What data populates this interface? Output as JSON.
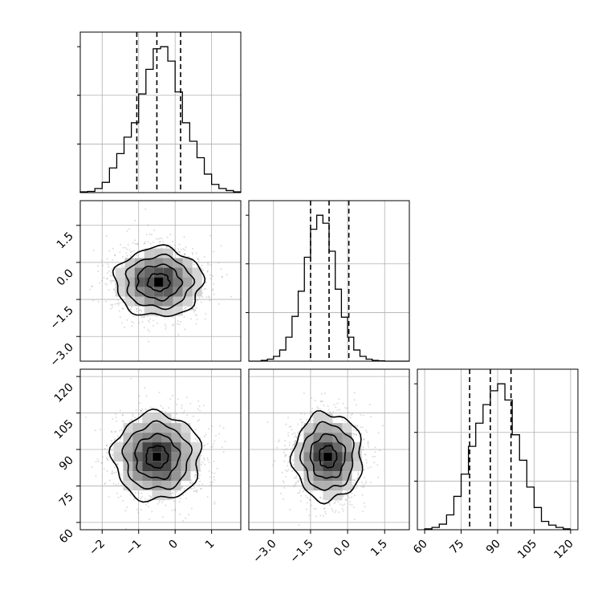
{
  "chart_data": {
    "type": "corner",
    "grid": true,
    "variables": [
      {
        "range": [
          -2.6,
          1.8
        ],
        "ticks": [
          -2,
          -1,
          0,
          1
        ],
        "tick_labels": [
          "−2",
          "−1",
          "0",
          "1"
        ],
        "quantiles": [
          -1.05,
          -0.5,
          0.15
        ],
        "hist_x0": -2.6,
        "hist_step": 0.2,
        "hist_counts": [
          2,
          3,
          10,
          25,
          60,
          95,
          135,
          170,
          240,
          300,
          350,
          355,
          320,
          245,
          170,
          125,
          85,
          45,
          20,
          10,
          5,
          2
        ]
      },
      {
        "range": [
          -4.0,
          2.5
        ],
        "ticks": [
          -3.0,
          -1.5,
          0.0,
          1.5
        ],
        "tick_labels": [
          "−3.0",
          "−1.5",
          "0.0",
          "1.5"
        ],
        "quantiles": [
          -1.5,
          -0.75,
          0.05
        ],
        "hist_x0": -4.0,
        "hist_step": 0.25,
        "hist_counts": [
          0,
          0,
          2,
          5,
          12,
          28,
          60,
          112,
          175,
          260,
          330,
          365,
          345,
          275,
          180,
          110,
          60,
          28,
          12,
          5,
          2,
          1,
          0,
          0,
          0,
          0
        ]
      },
      {
        "range": [
          57,
          123
        ],
        "ticks": [
          60,
          75,
          90,
          105,
          120
        ],
        "tick_labels": [
          "60",
          "75",
          "90",
          "105",
          "120"
        ],
        "quantiles": [
          78.5,
          87,
          95.5
        ],
        "hist_x0": 60,
        "hist_step": 3,
        "hist_counts": [
          2,
          5,
          12,
          32,
          72,
          120,
          180,
          230,
          270,
          300,
          315,
          280,
          205,
          150,
          92,
          48,
          18,
          10,
          5,
          2
        ]
      }
    ],
    "pairs": [
      {
        "row": 1,
        "col": 0,
        "center": [
          -0.45,
          -0.8
        ],
        "sigma": [
          0.6,
          0.7
        ]
      },
      {
        "row": 2,
        "col": 0,
        "center": [
          -0.5,
          87.0
        ],
        "sigma": [
          0.6,
          9.0
        ]
      },
      {
        "row": 2,
        "col": 1,
        "center": [
          -0.8,
          87.0
        ],
        "sigma": [
          0.7,
          9.0
        ]
      }
    ],
    "colors": {
      "points": "#9a9a9a",
      "density": "#000000",
      "lines": "#000000",
      "grid": "#b0b0b0"
    }
  }
}
